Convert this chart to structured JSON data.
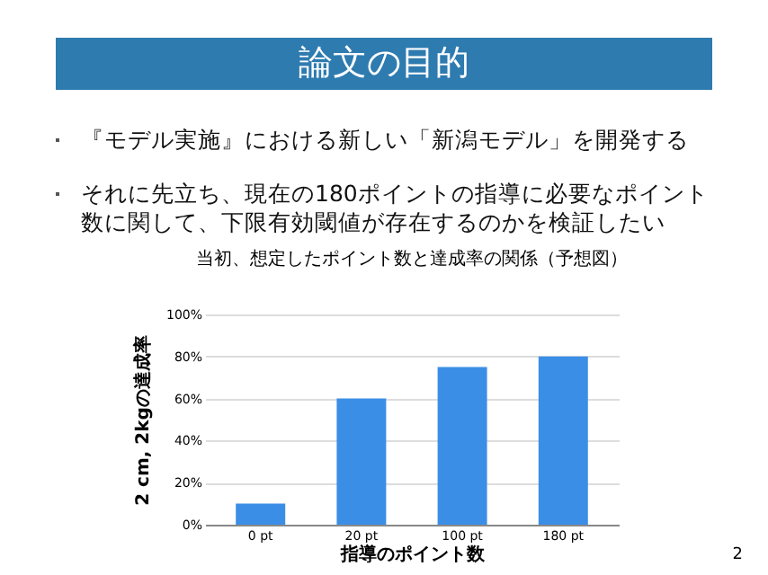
{
  "chart_data": {
    "type": "bar",
    "title": "当初、想定したポイント数と達成率の関係（予想図）",
    "categories": [
      "0 pt",
      "20 pt",
      "100 pt",
      "180 pt"
    ],
    "values": [
      10,
      60,
      75,
      80
    ],
    "color": "#3b8ee6",
    "xlabel": "指導のポイント数",
    "ylabel": "2 cm, 2kgの達成率",
    "ylim": [
      0,
      100
    ],
    "yticks": [
      {
        "value": 0,
        "label": "0%"
      },
      {
        "value": 20,
        "label": "20%"
      },
      {
        "value": 40,
        "label": "40%"
      },
      {
        "value": 60,
        "label": "60%"
      },
      {
        "value": 80,
        "label": "80%"
      },
      {
        "value": 100,
        "label": "100%"
      }
    ],
    "grid": "y",
    "annotations": [
      "論文の目的",
      "『モデル実施』における新しい「新潟モデル」を開発する",
      "それに先立ち、現在の180ポイントの指導に必要なポイント数に関して、下限有効閾値が存在するのかを検証したい",
      "2"
    ]
  }
}
